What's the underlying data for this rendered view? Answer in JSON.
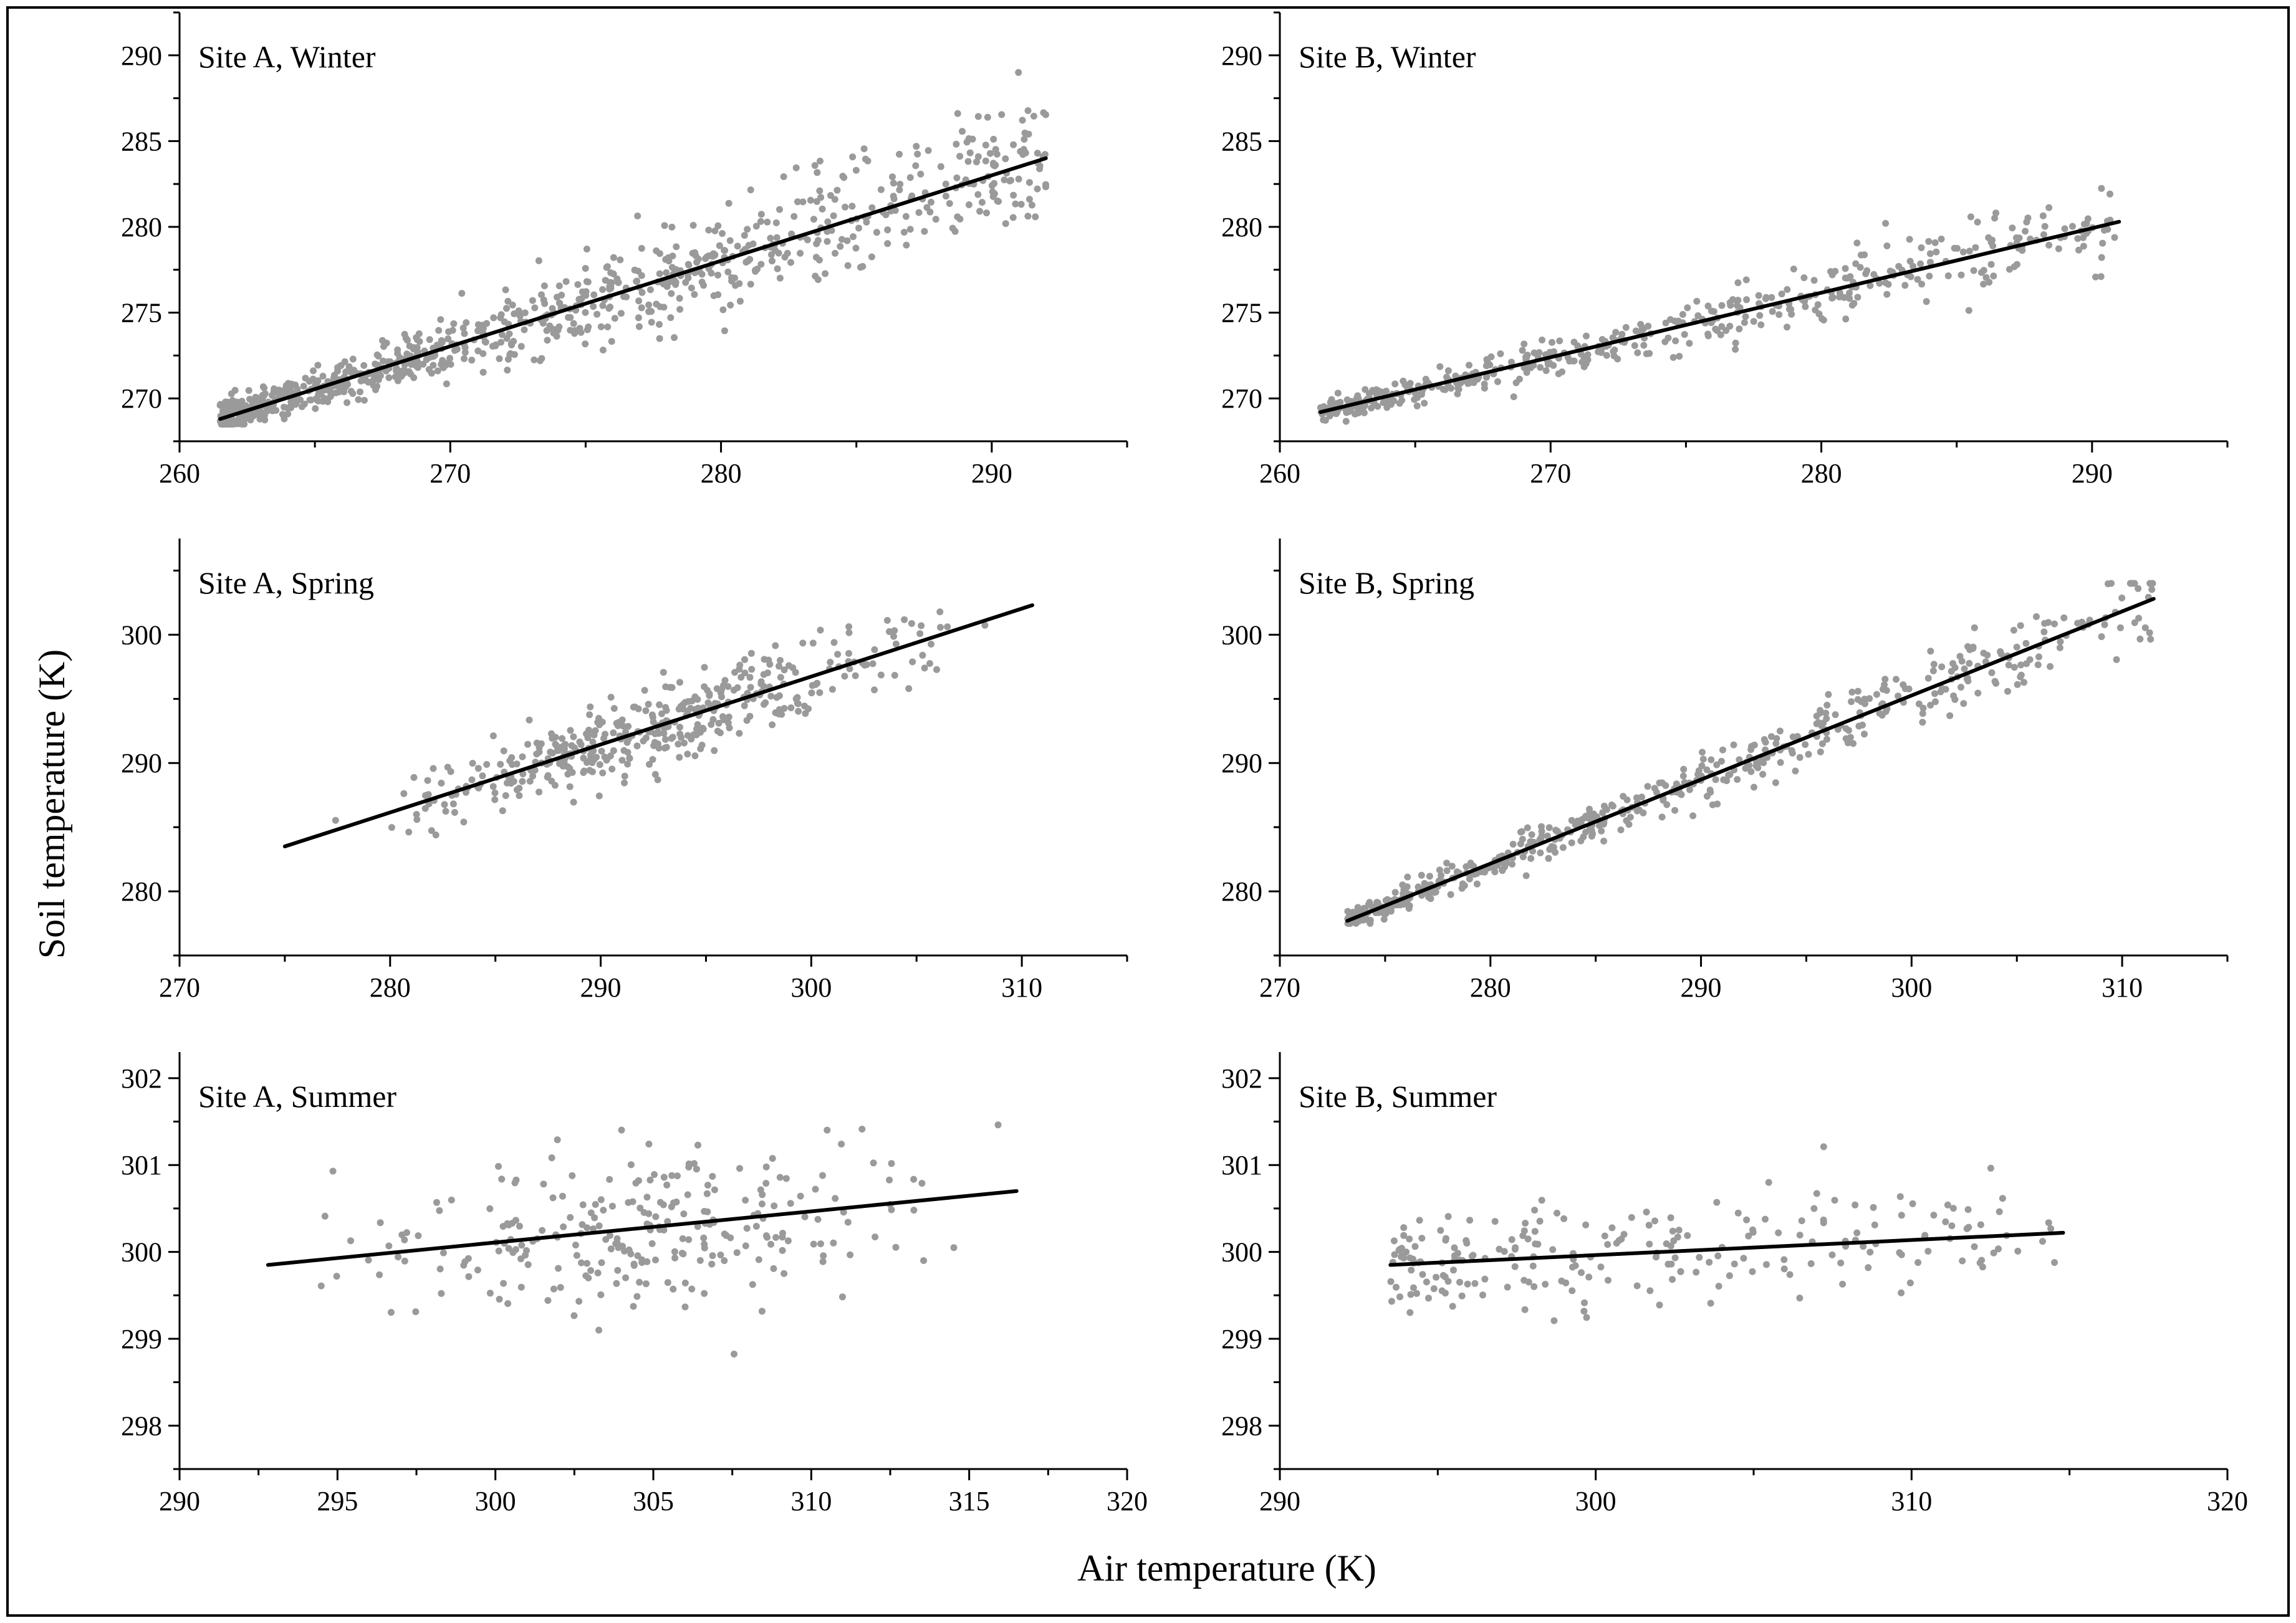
{
  "figure": {
    "ylabel": "Soil temperature (K)",
    "xlabel": "Air temperature (K)",
    "colors": {
      "points": "#9a9a9a",
      "fit": "#000000",
      "axes": "#000000",
      "frame": "#000000"
    }
  },
  "chart_data": [
    {
      "id": "a-winter",
      "type": "scatter",
      "title": "Site A, Winter",
      "xlim": [
        260,
        295
      ],
      "ylim": [
        267.5,
        292.5
      ],
      "xticks": [
        260,
        270,
        280,
        290
      ],
      "yticks": [
        270,
        275,
        280,
        285,
        290
      ],
      "xminor": 5,
      "yminor": 2.5,
      "fit": {
        "x": [
          261.5,
          292
        ],
        "y": [
          268.8,
          284
        ]
      },
      "points": {
        "seed": 11,
        "n": 900,
        "xmin": 261.5,
        "xmax": 292,
        "xdist": "low",
        "spread": [
          0.7,
          4.0
        ],
        "skew": 0.3,
        "clamp": [
          268.5,
          289
        ]
      }
    },
    {
      "id": "b-winter",
      "type": "scatter",
      "title": "Site B, Winter",
      "xlim": [
        260,
        295
      ],
      "ylim": [
        267.5,
        292.5
      ],
      "xticks": [
        260,
        270,
        280,
        290
      ],
      "yticks": [
        270,
        275,
        280,
        285,
        290
      ],
      "xminor": 5,
      "yminor": 2.5,
      "fit": {
        "x": [
          261.5,
          291
        ],
        "y": [
          269.2,
          280.3
        ]
      },
      "points": {
        "seed": 23,
        "n": 500,
        "xmin": 261.5,
        "xmax": 291,
        "xdist": "low",
        "spread": [
          0.5,
          2.2
        ],
        "skew": 0.1,
        "clamp": [
          268.5,
          283.5
        ]
      }
    },
    {
      "id": "a-spring",
      "type": "scatter",
      "title": "Site A, Spring",
      "xlim": [
        270,
        315
      ],
      "ylim": [
        275,
        307.5
      ],
      "xticks": [
        270,
        280,
        290,
        300,
        310
      ],
      "yticks": [
        280,
        290,
        300
      ],
      "xminor": 5,
      "yminor": 5,
      "fit": {
        "x": [
          275,
          310.5
        ],
        "y": [
          283.5,
          302.3
        ]
      },
      "points": {
        "seed": 37,
        "n": 420,
        "xmin": 275,
        "xmax": 310.5,
        "xdist": "mid",
        "spread": [
          2.5,
          3.2
        ],
        "skew": 0,
        "clamp": [
          281,
          304
        ]
      }
    },
    {
      "id": "b-spring",
      "type": "scatter",
      "title": "Site B, Spring",
      "xlim": [
        270,
        315
      ],
      "ylim": [
        275,
        307.5
      ],
      "xticks": [
        270,
        280,
        290,
        300,
        310
      ],
      "yticks": [
        280,
        290,
        300
      ],
      "xminor": 5,
      "yminor": 5,
      "fit": {
        "x": [
          273.2,
          311.5
        ],
        "y": [
          277.7,
          302.8
        ]
      },
      "points": {
        "seed": 53,
        "n": 520,
        "xmin": 273.2,
        "xmax": 311.5,
        "xdist": "low",
        "spread": [
          0.8,
          3.0
        ],
        "skew": -0.2,
        "clamp": [
          277.5,
          304
        ]
      }
    },
    {
      "id": "a-summer",
      "type": "scatter",
      "title": "Site A, Summer",
      "xlim": [
        290,
        320
      ],
      "ylim": [
        297.5,
        302.3
      ],
      "xticks": [
        290,
        295,
        300,
        305,
        310,
        315,
        320
      ],
      "yticks": [
        298,
        299,
        300,
        301,
        302
      ],
      "xminor": 2.5,
      "yminor": 0.5,
      "fit": {
        "x": [
          292.8,
          316.5
        ],
        "y": [
          299.85,
          300.7
        ]
      },
      "points": {
        "seed": 71,
        "n": 260,
        "xmin": 292.8,
        "xmax": 316.5,
        "xdist": "mid",
        "spread": [
          0.8,
          0.8
        ],
        "skew": 0,
        "clamp": [
          297.9,
          301.8
        ]
      }
    },
    {
      "id": "b-summer",
      "type": "scatter",
      "title": "Site B, Summer",
      "xlim": [
        290,
        320
      ],
      "ylim": [
        297.5,
        302.3
      ],
      "xticks": [
        290,
        300,
        310,
        320
      ],
      "yticks": [
        298,
        299,
        300,
        301,
        302
      ],
      "xminor": 5,
      "yminor": 0.5,
      "fit": {
        "x": [
          293.5,
          314.8
        ],
        "y": [
          299.85,
          300.22
        ]
      },
      "points": {
        "seed": 89,
        "n": 230,
        "xmin": 293.5,
        "xmax": 314.8,
        "xdist": "low",
        "spread": [
          0.55,
          0.55
        ],
        "skew": 0,
        "clamp": [
          299.0,
          301.3
        ]
      }
    }
  ]
}
